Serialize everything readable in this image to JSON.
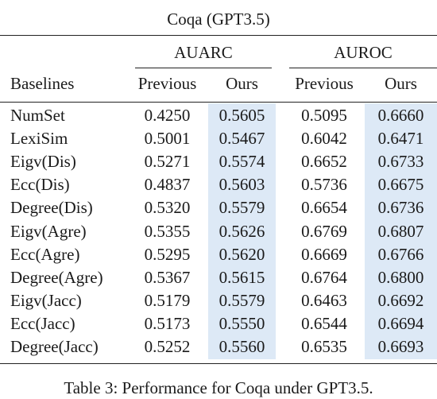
{
  "table": {
    "title": "Coqa (GPT3.5)",
    "group_headers": [
      "AUARC",
      "AUROC"
    ],
    "baseline_header": "Baselines",
    "sub_headers": [
      "Previous",
      "Ours",
      "Previous",
      "Ours"
    ],
    "rows": [
      {
        "name": "NumSet",
        "values": [
          "0.4250",
          "0.5605",
          "0.5095",
          "0.6660"
        ]
      },
      {
        "name": "LexiSim",
        "values": [
          "0.5001",
          "0.5467",
          "0.6042",
          "0.6471"
        ]
      },
      {
        "name": "Eigv(Dis)",
        "values": [
          "0.5271",
          "0.5574",
          "0.6652",
          "0.6733"
        ]
      },
      {
        "name": "Ecc(Dis)",
        "values": [
          "0.4837",
          "0.5603",
          "0.5736",
          "0.6675"
        ]
      },
      {
        "name": "Degree(Dis)",
        "values": [
          "0.5320",
          "0.5579",
          "0.6654",
          "0.6736"
        ]
      },
      {
        "name": "Eigv(Agre)",
        "values": [
          "0.5355",
          "0.5626",
          "0.6769",
          "0.6807"
        ]
      },
      {
        "name": "Ecc(Agre)",
        "values": [
          "0.5295",
          "0.5620",
          "0.6669",
          "0.6766"
        ]
      },
      {
        "name": "Degree(Agre)",
        "values": [
          "0.5367",
          "0.5615",
          "0.6764",
          "0.6800"
        ]
      },
      {
        "name": "Eigv(Jacc)",
        "values": [
          "0.5179",
          "0.5579",
          "0.6463",
          "0.6692"
        ]
      },
      {
        "name": "Ecc(Jacc)",
        "values": [
          "0.5173",
          "0.5550",
          "0.6544",
          "0.6694"
        ]
      },
      {
        "name": "Degree(Jacc)",
        "values": [
          "0.5252",
          "0.5560",
          "0.6535",
          "0.6693"
        ]
      }
    ],
    "highlight_color": "#dde9f6"
  },
  "caption": "Table 3: Performance for Coqa under GPT3.5."
}
